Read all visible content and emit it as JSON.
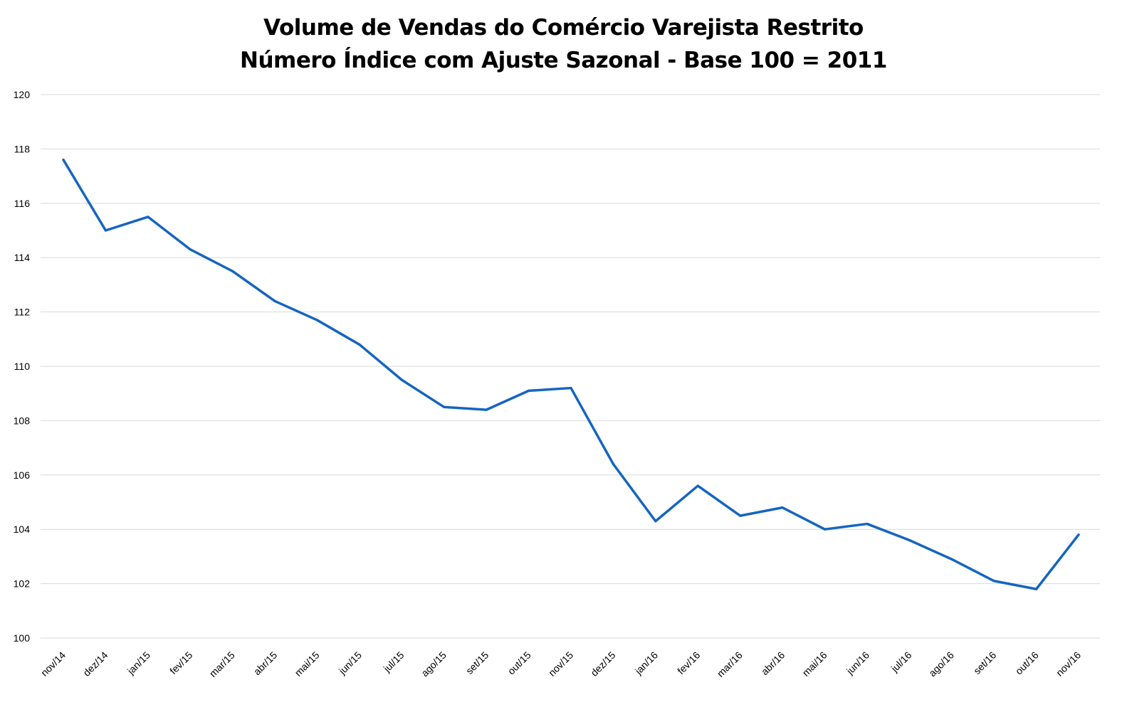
{
  "chart_data": {
    "type": "line",
    "title": "Volume de Vendas do Comércio Varejista Restrito",
    "subtitle": "Número Índice com Ajuste Sazonal - Base 100 = 2011",
    "xlabel": "",
    "ylabel": "",
    "categories": [
      "nov/14",
      "dez/14",
      "jan/15",
      "fev/15",
      "mar/15",
      "abr/15",
      "mai/15",
      "jun/15",
      "jul/15",
      "ago/15",
      "set/15",
      "out/15",
      "nov/15",
      "dez/15",
      "jan/16",
      "fev/16",
      "mar/16",
      "abr/16",
      "mai/16",
      "jun/16",
      "jul/16",
      "ago/16",
      "set/16",
      "out/16",
      "nov/16"
    ],
    "series": [
      {
        "values": [
          117.6,
          115.0,
          115.5,
          114.3,
          113.5,
          112.4,
          111.7,
          110.8,
          109.5,
          108.5,
          108.4,
          109.1,
          109.2,
          106.4,
          104.3,
          105.6,
          104.5,
          104.8,
          104.0,
          104.2,
          103.6,
          102.9,
          102.1,
          101.8,
          103.8
        ],
        "color": "#1565c0"
      }
    ],
    "ylim": [
      100,
      120
    ],
    "yticks": [
      "100",
      "102",
      "104",
      "106",
      "108",
      "110",
      "112",
      "114",
      "116",
      "118",
      "120"
    ],
    "grid": true,
    "legend": "none"
  }
}
